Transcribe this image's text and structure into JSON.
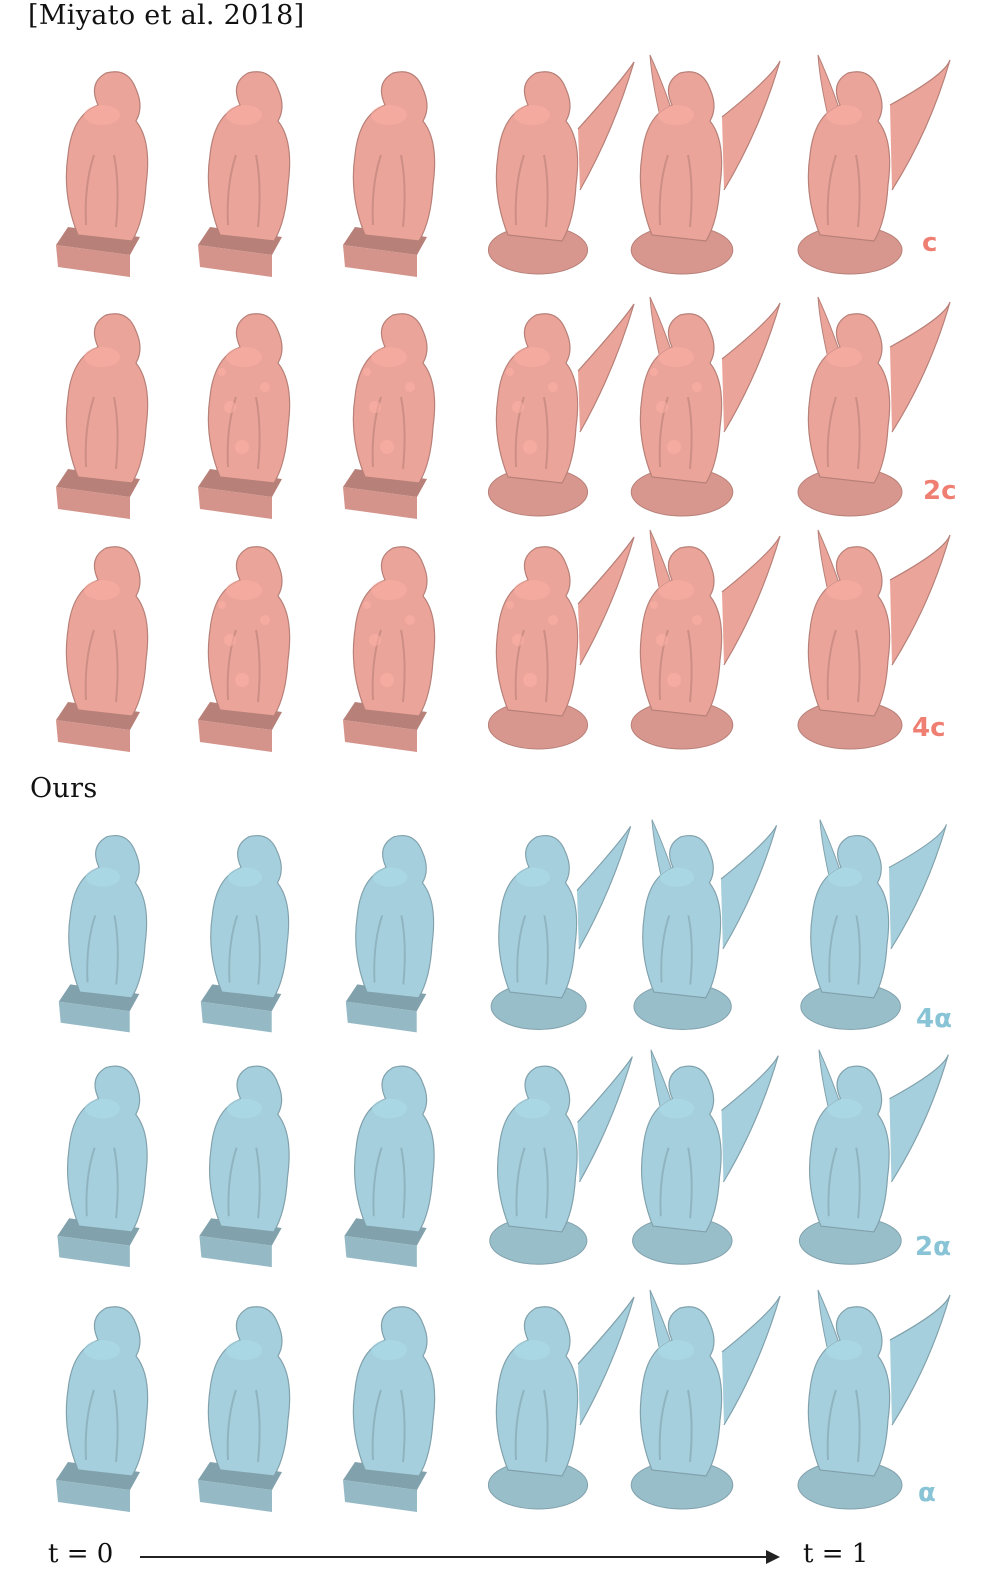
{
  "figure": {
    "top_section": {
      "title": "[Miyato et al. 2018]",
      "color": "#eba49a",
      "label_color": "#ef7f73",
      "rows": [
        {
          "label": "c"
        },
        {
          "label": "2c"
        },
        {
          "label": "4c"
        }
      ]
    },
    "bottom_section": {
      "title": "Ours",
      "color": "#a5cfdc",
      "label_color": "#88c3d6",
      "rows": [
        {
          "label": "4α"
        },
        {
          "label": "2α"
        },
        {
          "label": "α"
        }
      ]
    },
    "timeline": {
      "start_label": "t = 0",
      "end_label": "t = 1"
    }
  }
}
